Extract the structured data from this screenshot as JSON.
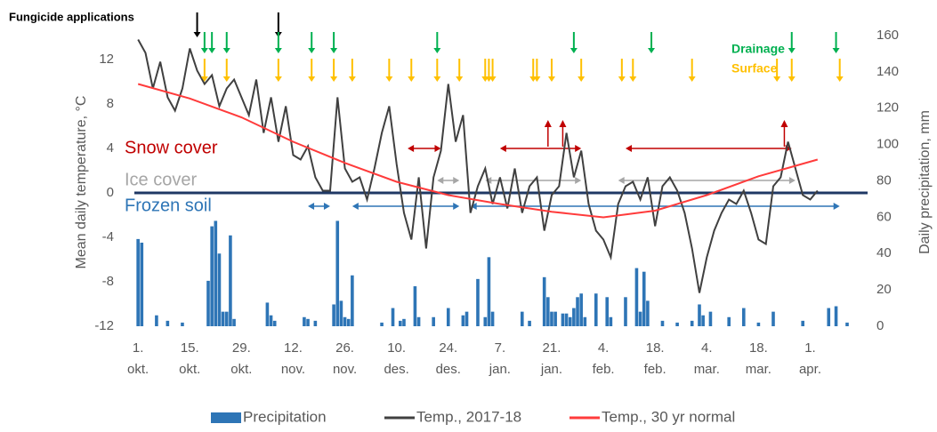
{
  "chart_data": {
    "type": "combo",
    "y_label": "Mean daily temperature, °C",
    "y2_label": "Daily precipitation, mm",
    "xlim": [
      -1,
      192
    ],
    "xticks": [
      {
        "value": 0,
        "label": "1.\nokt."
      },
      {
        "value": 14,
        "label": "15.\nokt."
      },
      {
        "value": 28,
        "label": "29.\nokt."
      },
      {
        "value": 42,
        "label": "12.\nnov."
      },
      {
        "value": 56,
        "label": "26.\nnov."
      },
      {
        "value": 70,
        "label": "10.\ndes."
      },
      {
        "value": 84,
        "label": "24.\ndes."
      },
      {
        "value": 98,
        "label": "7.\njan."
      },
      {
        "value": 112,
        "label": "21.\njan."
      },
      {
        "value": 126,
        "label": "4.\nfeb."
      },
      {
        "value": 140,
        "label": "18.\nfeb."
      },
      {
        "value": 154,
        "label": "4.\nmar."
      },
      {
        "value": 168,
        "label": "18.\nmar."
      },
      {
        "value": 182,
        "label": "1.\napr."
      }
    ],
    "ylim": [
      -12,
      14.16
    ],
    "yticks": [
      -12,
      -8,
      -4,
      0,
      4,
      8,
      12
    ],
    "y2lim": [
      0,
      160
    ],
    "y2ticks": [
      0,
      20,
      40,
      60,
      80,
      100,
      120,
      140,
      160
    ],
    "zero_line": true,
    "grid": false,
    "series": [
      {
        "name": "Precipitation",
        "type": "bar",
        "axis": "y2",
        "color": "#2e75b6",
        "x": [
          0,
          1,
          5,
          8,
          12,
          19,
          20,
          21,
          22,
          23,
          24,
          25,
          26,
          35,
          36,
          37,
          45,
          46,
          48,
          53,
          54,
          55,
          56,
          57,
          58,
          66,
          69,
          71,
          72,
          75,
          76,
          80,
          84,
          88,
          89,
          92,
          94,
          95,
          96,
          104,
          106,
          110,
          111,
          112,
          113,
          115,
          116,
          117,
          118,
          119,
          120,
          121,
          124,
          127,
          128,
          132,
          135,
          136,
          137,
          138,
          142,
          146,
          150,
          152,
          153,
          155,
          160,
          164,
          168,
          172,
          180,
          187,
          189,
          192
        ],
        "values": [
          48,
          46,
          6,
          3,
          2,
          25,
          55,
          58,
          40,
          8,
          8,
          50,
          4,
          13,
          6,
          3,
          5,
          4,
          3,
          12,
          58,
          14,
          5,
          4,
          28,
          2,
          10,
          3,
          4,
          22,
          5,
          5,
          10,
          6,
          8,
          26,
          5,
          38,
          8,
          8,
          3,
          27,
          16,
          8,
          8,
          7,
          7,
          5,
          10,
          16,
          18,
          5,
          18,
          16,
          5,
          16,
          32,
          8,
          30,
          14,
          3,
          2,
          3,
          12,
          6,
          8,
          5,
          10,
          2,
          8,
          3,
          10,
          11,
          2
        ]
      },
      {
        "name": "Temp., 2017-18",
        "type": "line",
        "color": "#404040",
        "x": [
          0,
          2,
          4,
          6,
          8,
          10,
          12,
          14,
          16,
          18,
          20,
          22,
          24,
          26,
          28,
          30,
          32,
          34,
          36,
          38,
          40,
          42,
          44,
          46,
          48,
          50,
          52,
          54,
          56,
          58,
          60,
          62,
          64,
          66,
          68,
          70,
          72,
          74,
          76,
          78,
          80,
          82,
          84,
          86,
          88,
          90,
          92,
          94,
          96,
          98,
          100,
          102,
          104,
          106,
          108,
          110,
          112,
          114,
          116,
          118,
          120,
          122,
          124,
          126,
          128,
          130,
          132,
          134,
          136,
          138,
          140,
          142,
          144,
          146,
          148,
          150,
          152,
          154,
          156,
          158,
          160,
          162,
          164,
          166,
          168,
          170,
          172,
          174,
          176,
          178,
          180,
          182,
          184
        ],
        "values": [
          13.8,
          12.6,
          9.4,
          11.8,
          8.6,
          7.4,
          9.4,
          13,
          11,
          9.8,
          10.6,
          7.8,
          9.4,
          10.2,
          8.6,
          7,
          10.2,
          5.4,
          8.6,
          4.6,
          7.8,
          3.4,
          3,
          4.2,
          1.4,
          0.2,
          0.2,
          8.6,
          2.2,
          1,
          1.4,
          -0.6,
          2.2,
          5.4,
          7.8,
          2.6,
          -1.8,
          -4.2,
          1.4,
          -5,
          1.4,
          3.8,
          9.8,
          4.6,
          7,
          -1.8,
          0.6,
          2.2,
          -1,
          1.4,
          -1.4,
          2.2,
          -1.8,
          0.6,
          1.4,
          -3.4,
          -0.2,
          0.6,
          5.4,
          1.4,
          3.8,
          -1,
          -3.4,
          -4.2,
          -5.8,
          -1,
          0.6,
          1,
          -0.6,
          1.4,
          -3,
          0.6,
          1.4,
          0.2,
          -1.8,
          -5,
          -9,
          -5.8,
          -3.4,
          -1.8,
          -0.6,
          -1,
          0.2,
          -1.8,
          -4.2,
          -4.6,
          0.6,
          1.4,
          4.6,
          2.2,
          -0.2,
          -0.6,
          0.2
        ]
      },
      {
        "name": "Temp., 30 yr normal",
        "type": "line",
        "color": "#ff3b3b",
        "x": [
          0,
          14,
          28,
          42,
          56,
          70,
          84,
          98,
          112,
          126,
          140,
          154,
          168,
          184
        ],
        "values": [
          9.8,
          8.5,
          6.8,
          4.6,
          2.7,
          1.0,
          -0.2,
          -1.0,
          -1.7,
          -2.2,
          -1.6,
          -0.2,
          1.5,
          3.0
        ]
      }
    ],
    "applications": [
      {
        "name": "Fungicide applications",
        "color": "#000000",
        "x": [
          16,
          38
        ]
      },
      {
        "name": "Drainage",
        "color": "#00b050",
        "x": [
          18,
          20,
          24,
          38,
          47,
          53,
          81,
          118,
          139,
          177,
          189
        ]
      },
      {
        "name": "Surface",
        "color": "#ffc000",
        "x": [
          18,
          24,
          38,
          47,
          53,
          58,
          68,
          74,
          81,
          87,
          94,
          95,
          96,
          107,
          108,
          112,
          120,
          131,
          134,
          150,
          173,
          177,
          190
        ]
      }
    ],
    "periods": [
      {
        "name": "Snow cover",
        "color": "#c00000",
        "segments": [
          [
            73,
            82
          ],
          [
            98,
            120
          ],
          [
            132,
            177
          ]
        ],
        "up_arrows": [
          111,
          115,
          175
        ]
      },
      {
        "name": "Ice cover",
        "color": "#a6a6a6",
        "segments": [
          [
            81,
            87
          ],
          [
            94,
            120
          ],
          [
            130,
            178
          ]
        ]
      },
      {
        "name": "Frozen soil",
        "color": "#2e75b6",
        "segments": [
          [
            46,
            52
          ],
          [
            58,
            87
          ],
          [
            90,
            190
          ]
        ]
      }
    ]
  }
}
